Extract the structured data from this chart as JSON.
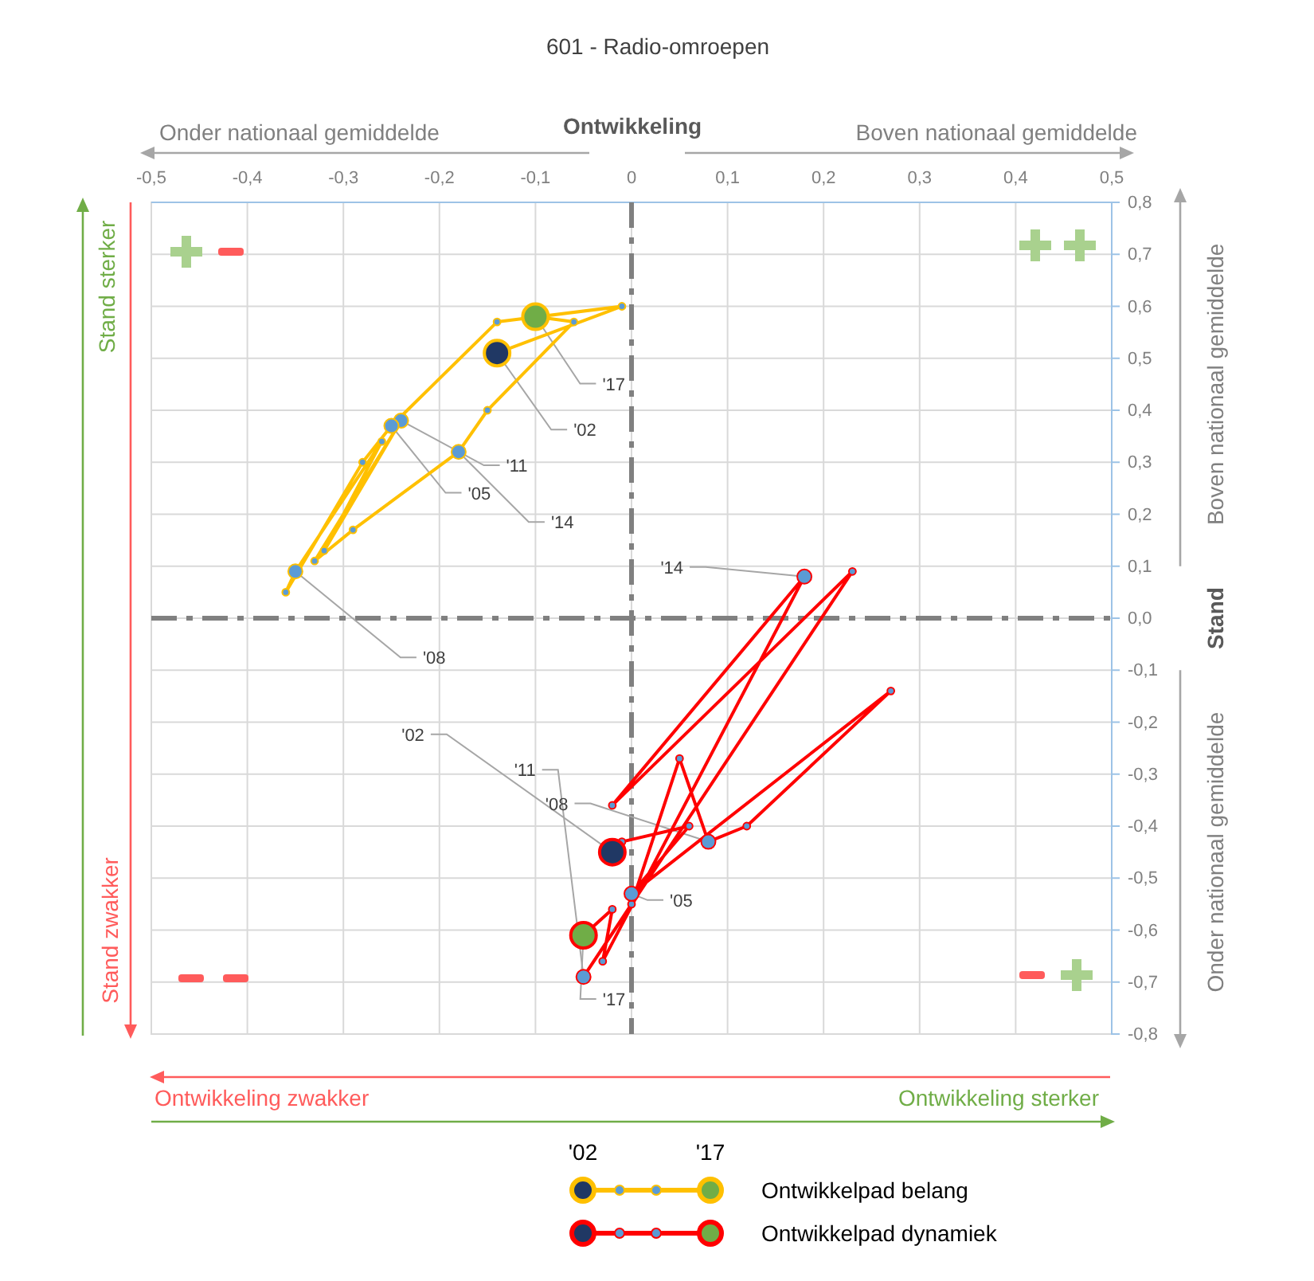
{
  "chart_data": {
    "type": "line",
    "title": "601 - Radio-omroepen",
    "xlabel": "Ontwikkeling",
    "ylabel": "Stand",
    "xlim": [
      -0.5,
      0.5
    ],
    "xticks": [
      {
        "value": -0.5,
        "label": "-0,5"
      },
      {
        "value": -0.4,
        "label": "-0,4"
      },
      {
        "value": -0.3,
        "label": "-0,3"
      },
      {
        "value": -0.2,
        "label": "-0,2"
      },
      {
        "value": -0.1,
        "label": "-0,1"
      },
      0,
      {
        "value": 0.1,
        "label": "0,1"
      },
      {
        "value": 0.2,
        "label": "0,2"
      },
      {
        "value": 0.3,
        "label": "0,3"
      },
      {
        "value": 0.4,
        "label": "0,4"
      },
      {
        "value": 0.5,
        "label": "0,5"
      }
    ],
    "ylim": [
      -0.8,
      0.8
    ],
    "yticks": [
      {
        "value": -0.8,
        "label": "-0,8"
      },
      {
        "value": -0.7,
        "label": "-0,7"
      },
      {
        "value": -0.6,
        "label": "-0,6"
      },
      {
        "value": -0.5,
        "label": "-0,5"
      },
      {
        "value": -0.4,
        "label": "-0,4"
      },
      {
        "value": -0.3,
        "label": "-0,3"
      },
      {
        "value": -0.2,
        "label": "-0,2"
      },
      {
        "value": -0.1,
        "label": "-0,1"
      },
      {
        "value": 0,
        "label": "0,0"
      },
      {
        "value": 0.1,
        "label": "0,1"
      },
      {
        "value": 0.2,
        "label": "0,2"
      },
      {
        "value": 0.3,
        "label": "0,3"
      },
      {
        "value": 0.4,
        "label": "0,4"
      },
      {
        "value": 0.5,
        "label": "0,5"
      },
      {
        "value": 0.6,
        "label": "0,6"
      },
      {
        "value": 0.7,
        "label": "0,7"
      },
      {
        "value": 0.8,
        "label": "0,8"
      }
    ],
    "grid": true,
    "marker": "circle",
    "legend": "bottom",
    "series": [
      {
        "name": "Ontwikkelpad belang",
        "color": "#ffc000",
        "x": [
          -0.14,
          -0.01,
          -0.14,
          -0.25,
          -0.28,
          -0.36,
          -0.35,
          -0.26,
          -0.32,
          -0.24,
          -0.33,
          -0.29,
          -0.18,
          -0.15,
          -0.06,
          -0.1
        ],
        "values": [
          0.51,
          0.6,
          0.57,
          0.37,
          0.3,
          0.05,
          0.09,
          0.34,
          0.13,
          0.38,
          0.11,
          0.17,
          0.32,
          0.4,
          0.57,
          0.58
        ]
      },
      {
        "name": "Ontwikkelpad dynamiek",
        "color": "#ff0000",
        "x": [
          -0.02,
          -0.01,
          0.06,
          0.0,
          0.27,
          0.12,
          0.08,
          0.05,
          0.0,
          -0.05,
          0.23,
          -0.02,
          0.18,
          -0.03,
          -0.02,
          -0.05
        ],
        "values": [
          -0.45,
          -0.43,
          -0.4,
          -0.53,
          -0.14,
          -0.4,
          -0.43,
          -0.27,
          -0.55,
          -0.69,
          0.09,
          -0.36,
          0.08,
          -0.66,
          -0.56,
          -0.61
        ]
      }
    ],
    "annotations": [
      {
        "text": "'17",
        "x": -0.1,
        "y": 0.58
      },
      {
        "text": "'02",
        "x": -0.14,
        "y": 0.51
      },
      {
        "text": "'05",
        "x": -0.25,
        "y": 0.37
      },
      {
        "text": "'11",
        "x": -0.24,
        "y": 0.38
      },
      {
        "text": "'14",
        "x": -0.18,
        "y": 0.32
      },
      {
        "text": "'08",
        "x": -0.35,
        "y": 0.09
      },
      {
        "text": "'14",
        "x": 0.18,
        "y": 0.08
      },
      {
        "text": "'02",
        "x": -0.02,
        "y": -0.45
      },
      {
        "text": "'11",
        "x": -0.05,
        "y": -0.69
      },
      {
        "text": "'08",
        "x": 0.08,
        "y": -0.43
      },
      {
        "text": "'05",
        "x": 0.0,
        "y": -0.53
      },
      {
        "text": "'17",
        "x": -0.05,
        "y": -0.61
      },
      "Onder nationaal gemiddelde",
      "Boven nationaal gemiddelde",
      "Boven nationaal gemiddelde",
      "Onder nationaal gemiddelde",
      "Stand sterker",
      "Stand zwakker",
      "Ontwikkeling zwakker",
      "Ontwikkeling sterker",
      "'02",
      "'17"
    ]
  }
}
